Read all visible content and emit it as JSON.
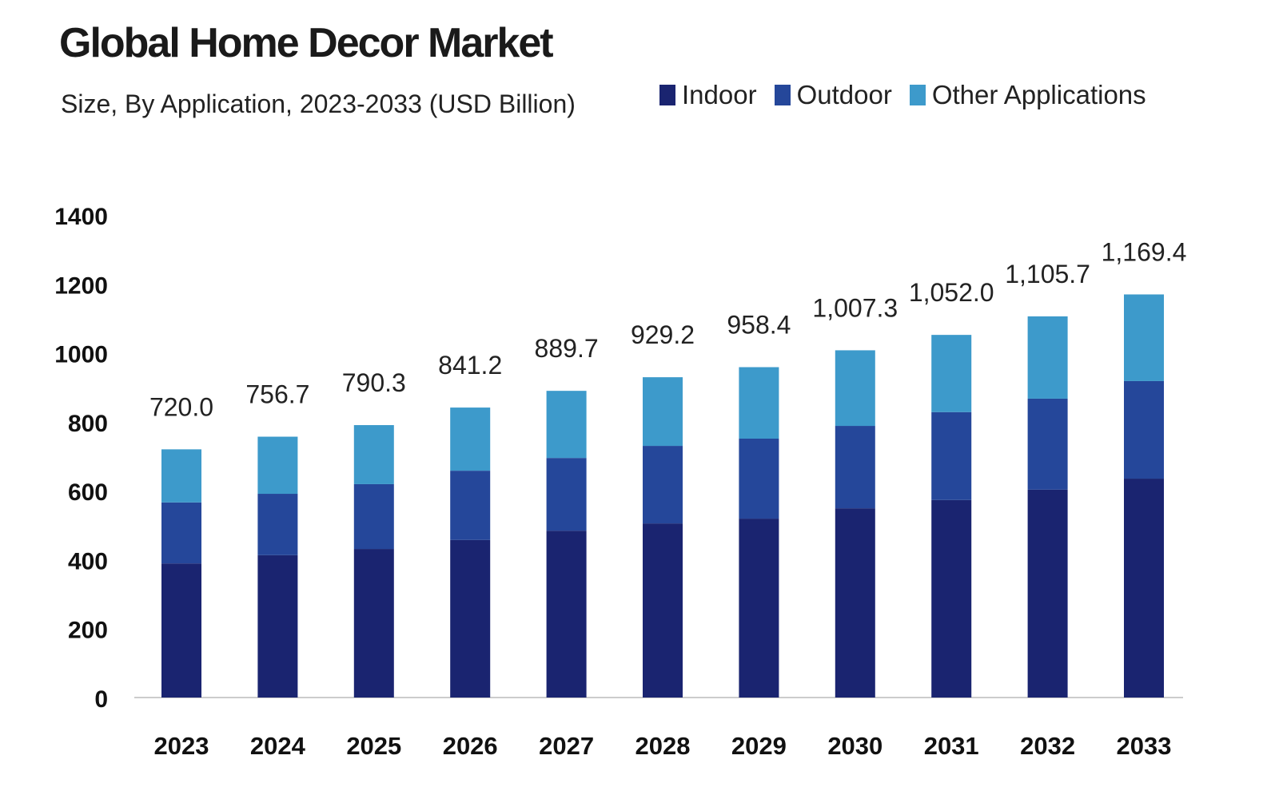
{
  "chart_data": {
    "type": "bar",
    "stacked": true,
    "title": "Global Home Decor Market",
    "subtitle": "Size, By Application, 2023-2033 (USD Billion)",
    "xlabel": "",
    "ylabel": "",
    "ylim": [
      0,
      1400
    ],
    "yticks": [
      0,
      200,
      400,
      600,
      800,
      1000,
      1200,
      1400
    ],
    "grid": false,
    "legend_position": "top-right",
    "categories": [
      "2023",
      "2024",
      "2025",
      "2026",
      "2027",
      "2028",
      "2029",
      "2030",
      "2031",
      "2032",
      "2033"
    ],
    "series": [
      {
        "name": "Indoor",
        "color": "#1a2470",
        "values": [
          389,
          413,
          431,
          457,
          484,
          505,
          519,
          549,
          573,
          603,
          635
        ]
      },
      {
        "name": "Outdoor",
        "color": "#25479a",
        "values": [
          177,
          178,
          188,
          201,
          211,
          225,
          232,
          239,
          255,
          264,
          283
        ]
      },
      {
        "name": "Other Applications",
        "color": "#3d9acb",
        "values": [
          154,
          165.7,
          171.3,
          183.2,
          194.7,
          199.2,
          207.4,
          219.3,
          224,
          238.7,
          251.4
        ]
      }
    ],
    "totals": [
      "720.0",
      "756.7",
      "790.3",
      "841.2",
      "889.7",
      "929.2",
      "958.4",
      "1,007.3",
      "1,052.0",
      "1,105.7",
      "1,169.4"
    ]
  }
}
